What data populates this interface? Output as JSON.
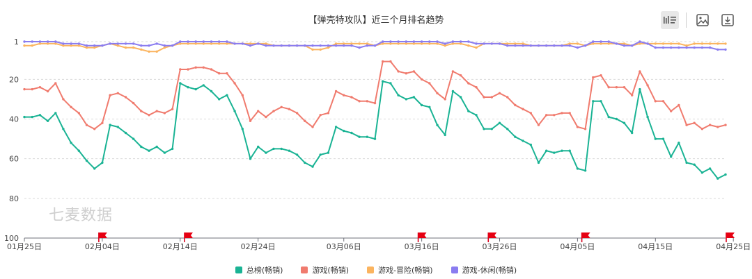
{
  "chart_data": {
    "type": "line",
    "title": "【弹壳特攻队】近三个月排名趋势",
    "y_inverted": true,
    "ylim": [
      1,
      100
    ],
    "y_ticks": [
      "1",
      "20",
      "40",
      "60",
      "80",
      "100"
    ],
    "y_tick_values": [
      1,
      20,
      40,
      60,
      80,
      100
    ],
    "x_start": "01-25",
    "x_ticks": [
      "01月25日",
      "02月04日",
      "02月14日",
      "02月24日",
      "03月06日",
      "03月16日",
      "03月26日",
      "04月05日",
      "04月15日",
      "04月25日"
    ],
    "flags": [
      "02-04",
      "02-15",
      "03-16",
      "03-25",
      "04-06",
      "04-26"
    ],
    "grid": "horizontal-dashed",
    "legend_position": "bottom",
    "series": [
      {
        "name": "总榜(畅销)",
        "color": "#1ab394",
        "values": [
          39,
          39,
          38,
          41,
          37,
          45,
          52,
          56,
          61,
          65,
          62,
          43,
          44,
          47,
          50,
          54,
          56,
          54,
          57,
          55,
          22,
          24,
          25,
          23,
          26,
          30,
          28,
          36,
          45,
          60,
          54,
          57,
          55,
          55,
          56,
          58,
          62,
          64,
          58,
          57,
          44,
          46,
          47,
          49,
          49,
          50,
          21,
          22,
          28,
          30,
          29,
          33,
          34,
          43,
          48,
          26,
          29,
          36,
          38,
          45,
          45,
          42,
          45,
          49,
          51,
          53,
          62,
          56,
          57,
          56,
          56,
          65,
          66,
          31,
          31,
          39,
          40,
          42,
          47,
          25,
          39,
          50,
          50,
          59,
          52,
          62,
          63,
          67,
          65,
          70,
          68
        ]
      },
      {
        "name": "游戏(畅销)",
        "color": "#f07b6e",
        "values": [
          25,
          25,
          24,
          26,
          22,
          30,
          34,
          37,
          43,
          45,
          42,
          28,
          27,
          29,
          32,
          36,
          38,
          36,
          37,
          35,
          15,
          15,
          14,
          14,
          15,
          17,
          17,
          22,
          28,
          41,
          36,
          39,
          36,
          34,
          35,
          37,
          41,
          44,
          38,
          37,
          26,
          28,
          29,
          31,
          31,
          32,
          11,
          11,
          16,
          17,
          16,
          20,
          22,
          27,
          30,
          16,
          18,
          22,
          24,
          29,
          29,
          27,
          29,
          33,
          35,
          37,
          43,
          38,
          38,
          37,
          37,
          44,
          45,
          19,
          18,
          24,
          24,
          24,
          28,
          16,
          23,
          31,
          31,
          36,
          33,
          43,
          42,
          45,
          43,
          44,
          43
        ]
      },
      {
        "name": "游戏-冒险(畅销)",
        "color": "#fbb45f",
        "values": [
          3,
          3,
          2,
          2,
          2,
          3,
          3,
          3,
          4,
          4,
          3,
          2,
          3,
          4,
          4,
          5,
          6,
          6,
          4,
          3,
          2,
          2,
          2,
          2,
          2,
          2,
          2,
          2,
          2,
          2,
          2,
          2,
          3,
          3,
          3,
          3,
          3,
          5,
          5,
          4,
          2,
          2,
          2,
          2,
          2,
          3,
          2,
          2,
          2,
          2,
          2,
          2,
          2,
          2,
          3,
          2,
          2,
          3,
          4,
          2,
          2,
          2,
          2,
          2,
          2,
          3,
          3,
          3,
          3,
          3,
          2,
          2,
          3,
          2,
          2,
          2,
          2,
          2,
          3,
          2,
          2,
          2,
          2,
          2,
          2,
          3,
          2,
          2,
          2,
          2,
          2
        ]
      },
      {
        "name": "游戏-休闲(畅销)",
        "color": "#8a7cf0",
        "values": [
          1,
          1,
          1,
          1,
          1,
          2,
          2,
          2,
          3,
          3,
          3,
          2,
          2,
          2,
          2,
          3,
          3,
          2,
          3,
          3,
          1,
          1,
          1,
          1,
          1,
          1,
          1,
          2,
          2,
          3,
          2,
          3,
          3,
          3,
          3,
          3,
          3,
          3,
          3,
          3,
          3,
          3,
          3,
          4,
          3,
          3,
          1,
          1,
          1,
          1,
          1,
          1,
          1,
          1,
          2,
          1,
          1,
          1,
          2,
          2,
          2,
          2,
          3,
          3,
          3,
          3,
          3,
          3,
          3,
          3,
          3,
          4,
          3,
          1,
          1,
          1,
          2,
          3,
          3,
          1,
          2,
          4,
          4,
          4,
          4,
          4,
          4,
          4,
          4,
          5,
          5
        ]
      }
    ]
  },
  "watermark": "七麦数据",
  "toolbar": {
    "icons": [
      "chart-type-icon",
      "image-icon",
      "download-icon"
    ]
  }
}
